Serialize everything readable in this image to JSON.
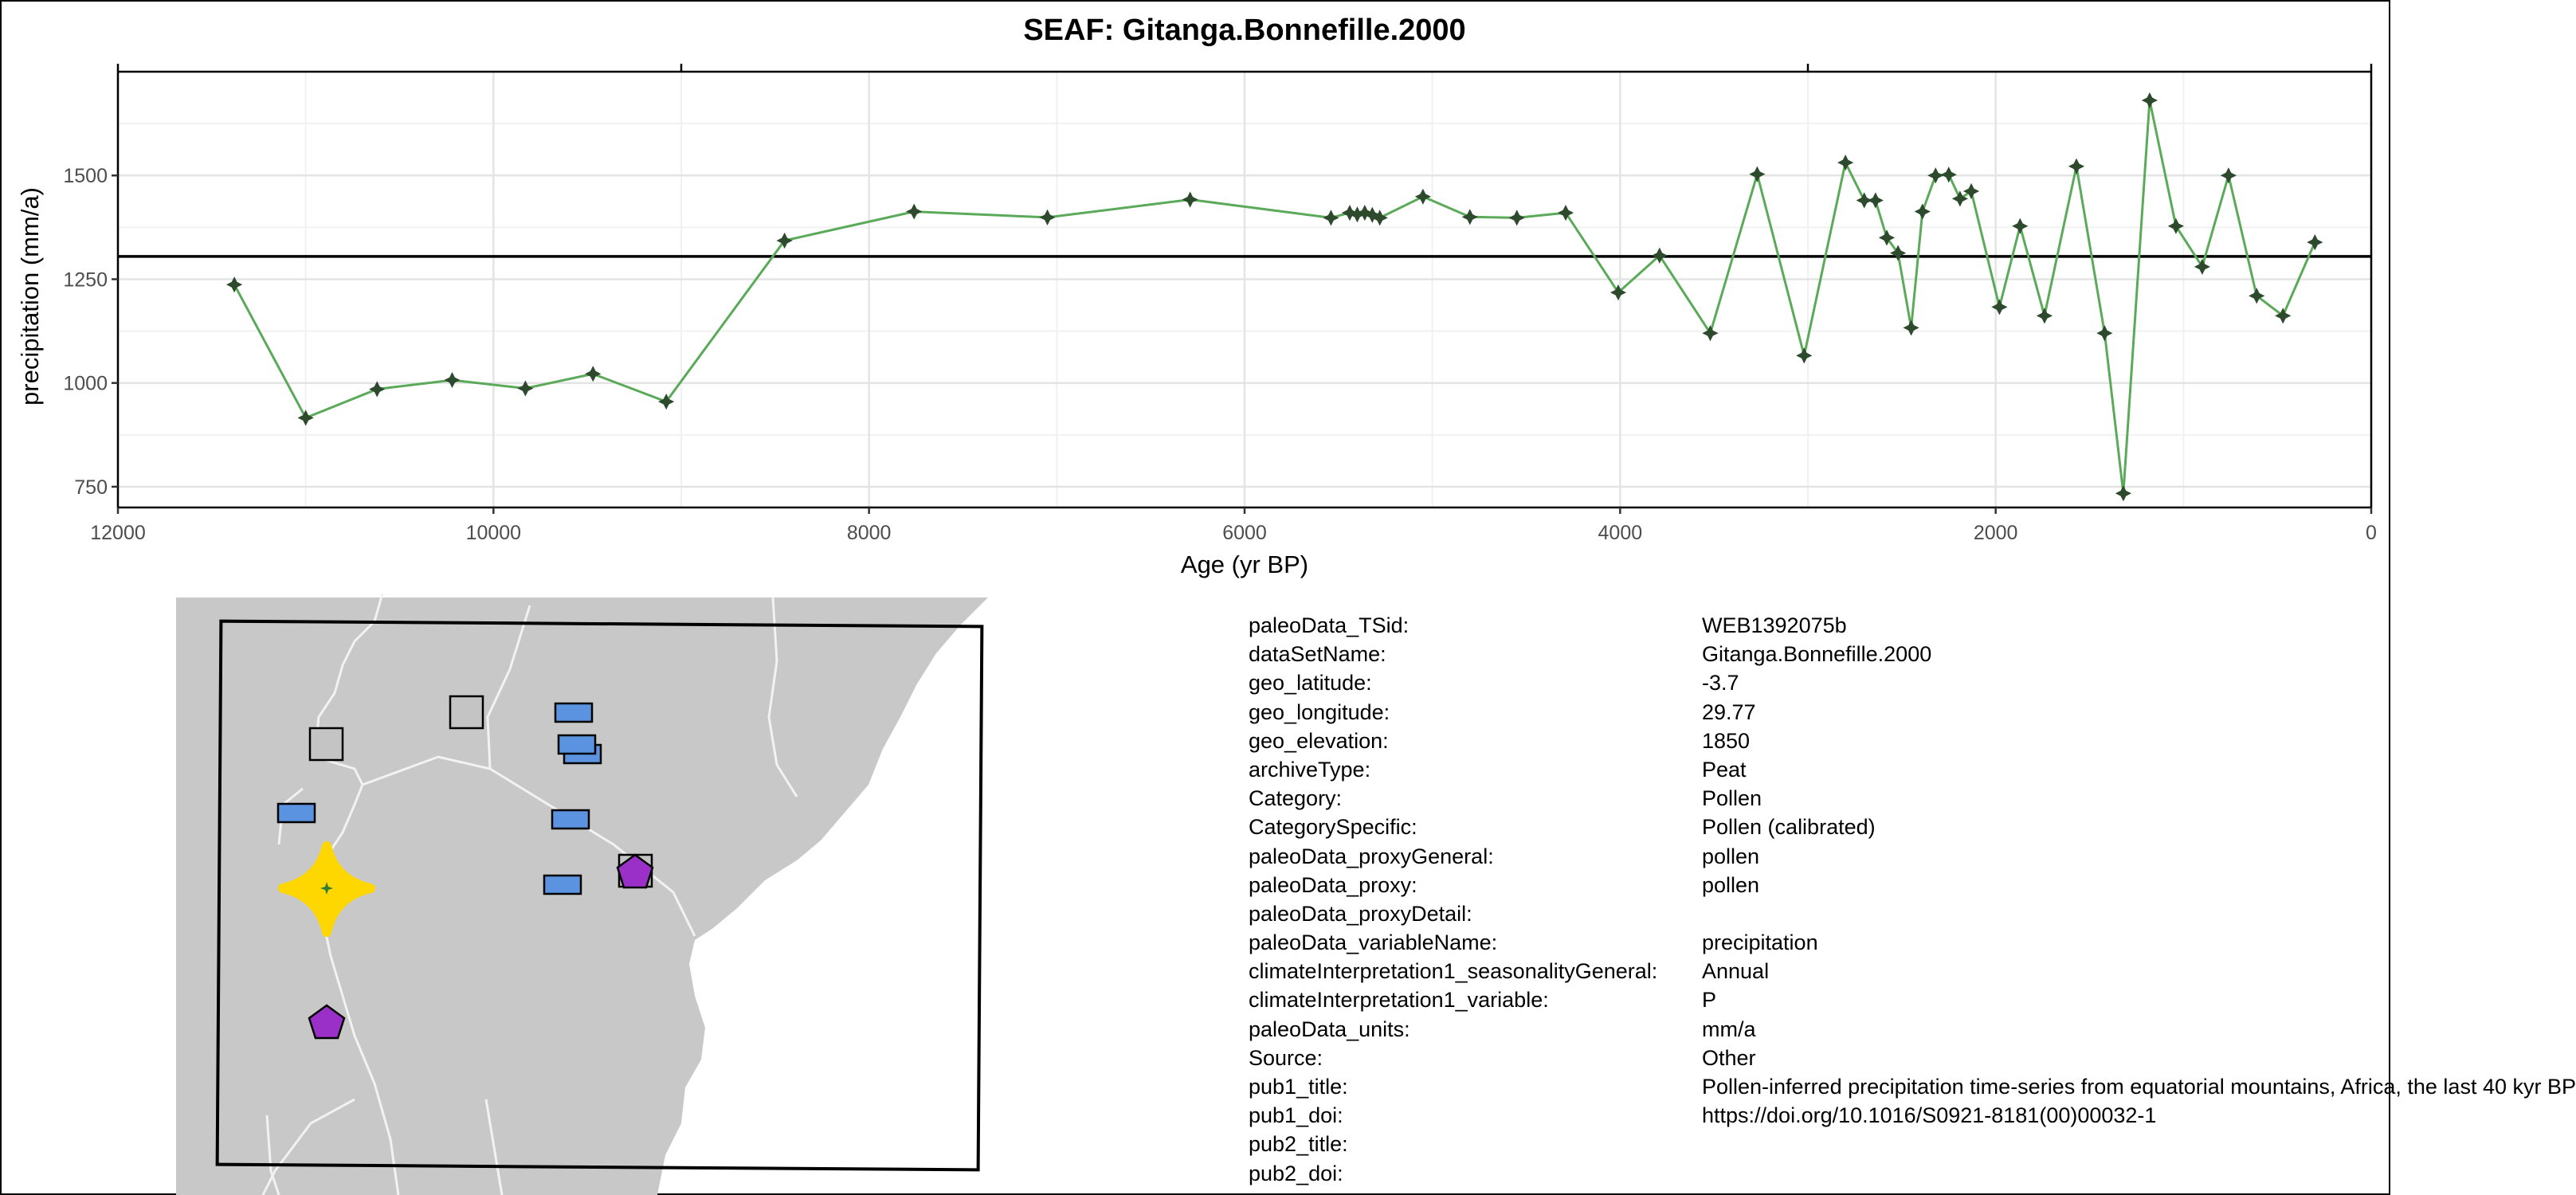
{
  "chart_data": {
    "type": "line",
    "title": "SEAF: Gitanga.Bonnefille.2000",
    "xlabel": "Age (yr BP)",
    "ylabel": "precipitation (mm/a)",
    "x_reversed": true,
    "xlim": [
      12000,
      0
    ],
    "ylim": [
      700,
      1750
    ],
    "xticks": [
      12000,
      10000,
      8000,
      6000,
      4000,
      2000,
      0
    ],
    "yticks": [
      750,
      1000,
      1250,
      1500
    ],
    "mean_line": 1305,
    "grid": true,
    "legend": "none",
    "colors": {
      "line": "#5aaa5a",
      "marker": "#2d4a2d",
      "mean": "#000000"
    },
    "series": [
      {
        "x": [
          11380,
          11000,
          10620,
          10220,
          9830,
          9470,
          9080,
          8450,
          7760,
          7050,
          6290,
          5540,
          5440,
          5400,
          5360,
          5320,
          5280,
          5050,
          4800,
          4550,
          4290,
          4010,
          3790,
          3520,
          3270,
          3020,
          2800,
          2700,
          2640,
          2580,
          2520,
          2450,
          2390,
          2320,
          2250,
          2190,
          2130,
          1980,
          1870,
          1740,
          1570,
          1420,
          1320,
          1180,
          1040,
          900,
          760,
          610,
          470,
          300
        ],
        "y": [
          1237,
          916,
          985,
          1007,
          987,
          1022,
          955,
          1343,
          1413,
          1399,
          1442,
          1398,
          1410,
          1406,
          1410,
          1405,
          1398,
          1449,
          1400,
          1398,
          1410,
          1218,
          1307,
          1120,
          1503,
          1066,
          1531,
          1440,
          1440,
          1350,
          1313,
          1133,
          1413,
          1500,
          1502,
          1444,
          1462,
          1183,
          1378,
          1162,
          1522,
          1120,
          734,
          1681,
          1378,
          1280,
          1500,
          1210,
          1162,
          1339
        ]
      }
    ]
  },
  "map": {
    "colors": {
      "land": "#c8c8c8",
      "border": "#f2f2f2",
      "frame": "#000000",
      "target": "#ffd700",
      "target_center": "#2e7d32",
      "blue": "#5b93e0",
      "gray": "#c4c4c4",
      "purple": "#9b30c8"
    },
    "markers": [
      {
        "type": "square",
        "color": "gray"
      },
      {
        "type": "square",
        "color": "gray"
      },
      {
        "type": "square",
        "color": "gray"
      },
      {
        "type": "rect",
        "color": "blue"
      },
      {
        "type": "rect",
        "color": "blue"
      },
      {
        "type": "rect",
        "color": "blue"
      },
      {
        "type": "rect",
        "color": "blue"
      },
      {
        "type": "rect",
        "color": "blue"
      },
      {
        "type": "rect",
        "color": "blue"
      },
      {
        "type": "pentagon",
        "color": "purple"
      },
      {
        "type": "pentagon",
        "color": "purple"
      },
      {
        "type": "star",
        "color": "target"
      }
    ]
  },
  "metadata": [
    {
      "key": "paleoData_TSid:",
      "value": "WEB1392075b"
    },
    {
      "key": "dataSetName:",
      "value": "Gitanga.Bonnefille.2000"
    },
    {
      "key": "geo_latitude:",
      "value": "-3.7"
    },
    {
      "key": "geo_longitude:",
      "value": "29.77"
    },
    {
      "key": "geo_elevation:",
      "value": "1850"
    },
    {
      "key": "archiveType:",
      "value": "Peat"
    },
    {
      "key": "Category:",
      "value": "Pollen"
    },
    {
      "key": "CategorySpecific:",
      "value": "Pollen (calibrated)"
    },
    {
      "key": "paleoData_proxyGeneral:",
      "value": "pollen"
    },
    {
      "key": "paleoData_proxy:",
      "value": "pollen"
    },
    {
      "key": "paleoData_proxyDetail:",
      "value": ""
    },
    {
      "key": "paleoData_variableName:",
      "value": "precipitation"
    },
    {
      "key": "climateInterpretation1_seasonalityGeneral:",
      "value": "Annual"
    },
    {
      "key": "climateInterpretation1_variable:",
      "value": "P"
    },
    {
      "key": "paleoData_units:",
      "value": "mm/a"
    },
    {
      "key": "Source:",
      "value": "Other"
    },
    {
      "key": "pub1_title:",
      "value": "Pollen-inferred precipitation time-series from equatorial mountains, Africa, the last 40 kyr BP"
    },
    {
      "key": "pub1_doi:",
      "value": "https://doi.org/10.1016/S0921-8181(00)00032-1"
    },
    {
      "key": "pub2_title:",
      "value": ""
    },
    {
      "key": "pub2_doi:",
      "value": ""
    }
  ]
}
